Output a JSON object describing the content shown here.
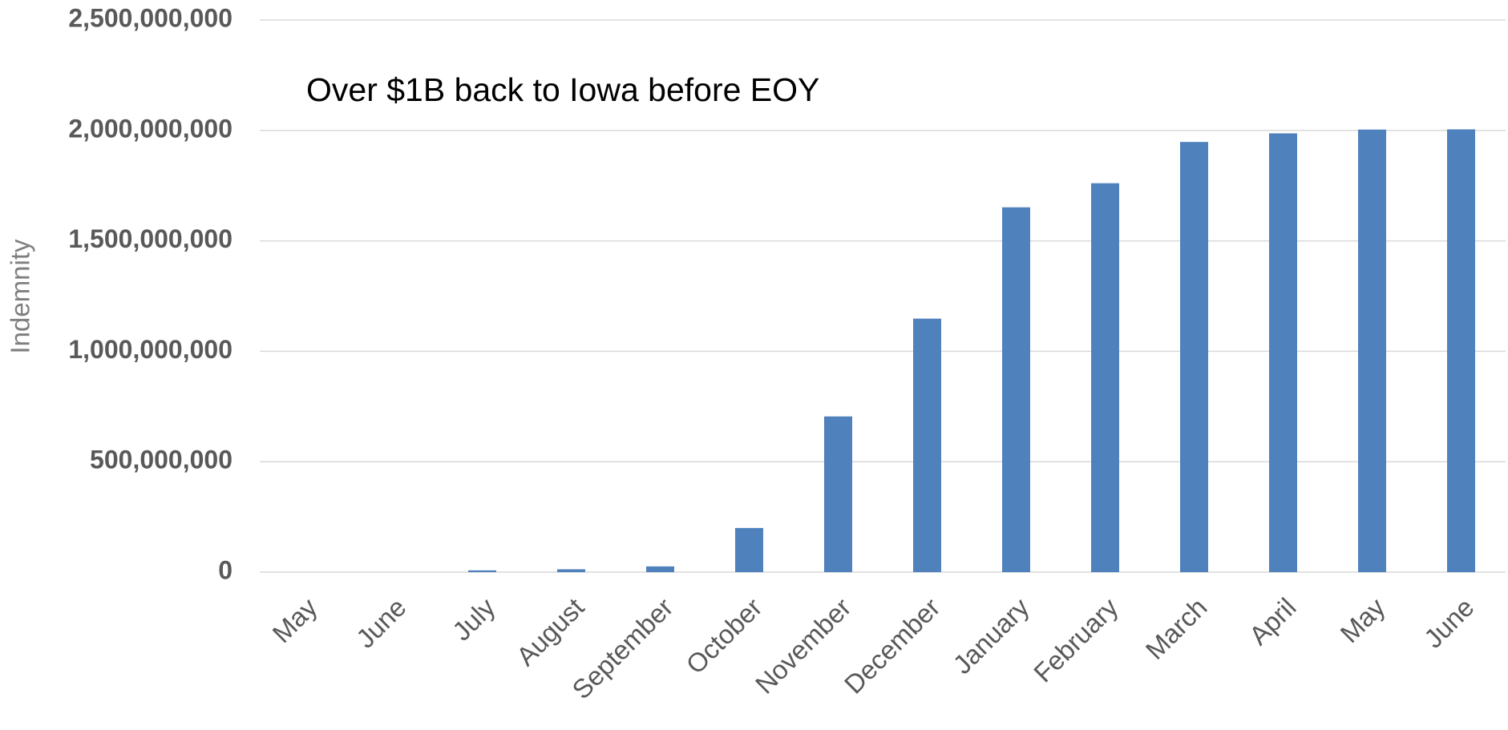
{
  "chart_data": {
    "type": "bar",
    "annotation": "Over $1B back to Iowa before EOY",
    "y_label": "Indemnity",
    "categories": [
      "May",
      "June",
      "July",
      "August",
      "September",
      "October",
      "November",
      "December",
      "January",
      "February",
      "March",
      "April",
      "May",
      "June"
    ],
    "values": [
      0,
      0,
      8000000,
      13000000,
      26000000,
      200000000,
      705000000,
      1148000000,
      1652000000,
      1761000000,
      1948000000,
      1987000000,
      2004000000,
      2005000000
    ],
    "color": "#4f81bd",
    "ylim": [
      0,
      2500000000
    ],
    "yticks": [
      0,
      {
        "value": 500000000,
        "label": "500,000,000"
      },
      {
        "value": 1000000000,
        "label": "1,000,000,000"
      },
      {
        "value": 1500000000,
        "label": "1,500,000,000"
      },
      {
        "value": 2000000000,
        "label": "2,000,000,000"
      },
      {
        "value": 2500000000,
        "label": "2,500,000,000"
      }
    ],
    "grid": true
  }
}
